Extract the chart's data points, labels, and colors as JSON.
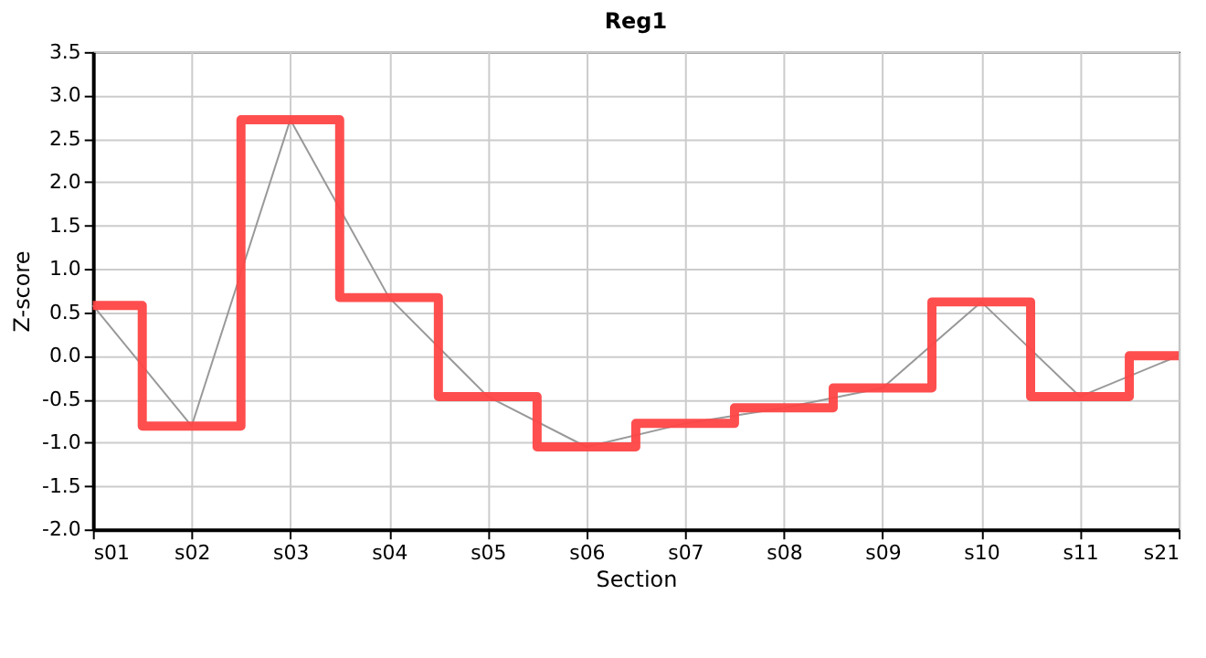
{
  "chart_data": {
    "type": "step",
    "title": "Reg1",
    "xlabel": "Section",
    "ylabel": "Z-score",
    "categories": [
      "s01",
      "s02",
      "s03",
      "s04",
      "s05",
      "s06",
      "s07",
      "s08",
      "s09",
      "s10",
      "s11",
      "s21"
    ],
    "series": [
      {
        "type": "line",
        "color": "#999999",
        "values": [
          0.58,
          -0.81,
          2.72,
          0.67,
          -0.47,
          -1.05,
          -0.78,
          -0.6,
          -0.37,
          0.62,
          -0.47,
          0.0
        ]
      },
      {
        "color": "#ff4444",
        "values": [
          0.58,
          -0.81,
          2.72,
          0.67,
          -0.47,
          -1.05,
          -0.78,
          -0.6,
          -0.37,
          0.62,
          -0.47,
          0.0
        ]
      }
    ],
    "ylim": [
      -2.0,
      3.5
    ],
    "yticks": [
      {
        "value": -2.0,
        "label": "-2.0"
      },
      -1.5,
      {
        "value": -1.0,
        "label": "-1.0"
      },
      -0.5,
      {
        "value": 0.0,
        "label": "0.0"
      },
      0.5,
      {
        "value": 1.0,
        "label": "1.0"
      },
      1.5,
      {
        "value": 2.0,
        "label": "2.0"
      },
      2.5,
      {
        "value": 3.0,
        "label": "3.0"
      },
      3.5
    ],
    "grid": true
  }
}
